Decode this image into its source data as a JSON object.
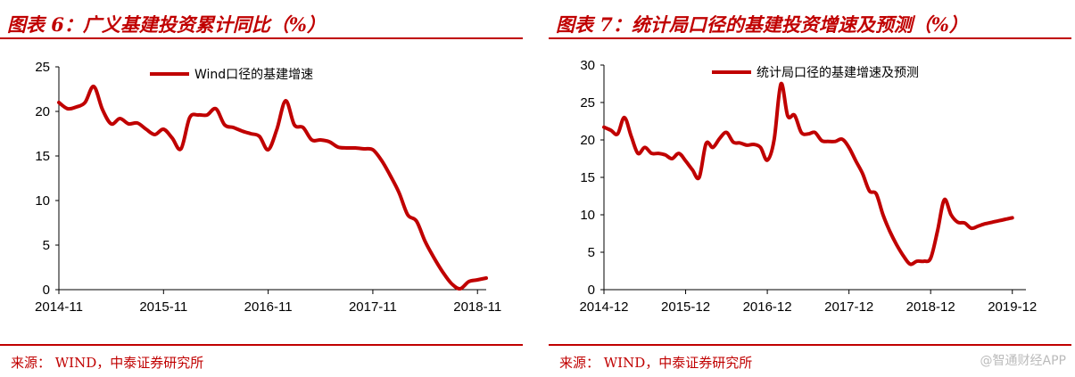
{
  "charts": [
    {
      "title": "图表 6：广义基建投资累计同比（%）",
      "source": "来源：   WIND，中泰证券研究所",
      "chart_data": {
        "type": "line",
        "xlabel": "",
        "ylabel": "",
        "ylim": [
          0,
          25
        ],
        "yticks": [
          0,
          5,
          10,
          15,
          20,
          25
        ],
        "xlim": [
          0,
          49
        ],
        "xtick_labels": [
          {
            "pos": 0,
            "label": "2014-11"
          },
          {
            "pos": 12,
            "label": "2015-11"
          },
          {
            "pos": 24,
            "label": "2016-11"
          },
          {
            "pos": 36,
            "label": "2017-11"
          },
          {
            "pos": 48,
            "label": "2018-11"
          }
        ],
        "grid": false,
        "legend_position": "top",
        "color": "#c00000",
        "series": [
          {
            "name": "Wind口径的基建增速",
            "x": [
              0,
              1,
              2,
              3,
              4,
              5,
              6,
              7,
              8,
              9,
              10,
              11,
              12,
              13,
              14,
              15,
              16,
              17,
              18,
              19,
              20,
              21,
              22,
              23,
              24,
              25,
              26,
              27,
              28,
              29,
              30,
              31,
              32,
              33,
              34,
              35,
              36,
              37,
              38,
              39,
              40,
              41,
              42,
              43,
              44,
              45,
              46,
              47,
              48,
              49
            ],
            "values": [
              21.0,
              20.3,
              20.5,
              21.0,
              22.8,
              20.2,
              18.6,
              19.2,
              18.6,
              18.7,
              18.0,
              17.4,
              18.0,
              17.0,
              15.8,
              19.3,
              19.6,
              19.6,
              20.3,
              18.5,
              18.2,
              17.8,
              17.5,
              17.2,
              15.7,
              18.0,
              21.2,
              18.5,
              18.2,
              16.8,
              16.8,
              16.6,
              16.0,
              15.9,
              15.9,
              15.8,
              15.7,
              14.5,
              12.8,
              10.9,
              8.4,
              7.7,
              5.4,
              3.6,
              2.0,
              0.7,
              0.1,
              0.9,
              1.1,
              1.3
            ]
          }
        ]
      }
    },
    {
      "title": "图表 7：统计局口径的基建投资增速及预测（%）",
      "source": "来源：   WIND，中泰证券研究所",
      "chart_data": {
        "type": "line",
        "xlabel": "",
        "ylabel": "",
        "ylim": [
          0,
          30
        ],
        "yticks": [
          0,
          5,
          10,
          15,
          20,
          25,
          30
        ],
        "xlim": [
          0,
          62
        ],
        "xtick_labels": [
          {
            "pos": 0,
            "label": "2014-12"
          },
          {
            "pos": 12,
            "label": "2015-12"
          },
          {
            "pos": 24,
            "label": "2016-12"
          },
          {
            "pos": 36,
            "label": "2017-12"
          },
          {
            "pos": 48,
            "label": "2018-12"
          },
          {
            "pos": 60,
            "label": "2019-12"
          }
        ],
        "grid": false,
        "legend_position": "top",
        "color": "#c00000",
        "series": [
          {
            "name": "统计局口径的基建增速及预测",
            "x": [
              0,
              1,
              2,
              3,
              4,
              5,
              6,
              7,
              8,
              9,
              10,
              11,
              12,
              13,
              14,
              15,
              16,
              17,
              18,
              19,
              20,
              21,
              22,
              23,
              24,
              25,
              26,
              27,
              28,
              29,
              30,
              31,
              32,
              33,
              34,
              35,
              36,
              37,
              38,
              39,
              40,
              41,
              42,
              43,
              44,
              45,
              46,
              47,
              48,
              49,
              50,
              51,
              52,
              53,
              54,
              55,
              56,
              57,
              58,
              59,
              60
            ],
            "values": [
              21.7,
              21.3,
              20.8,
              23.0,
              20.5,
              18.2,
              19.0,
              18.2,
              18.2,
              18.0,
              17.5,
              18.2,
              17.2,
              16.0,
              15.0,
              19.5,
              19.0,
              20.2,
              21.0,
              19.7,
              19.6,
              19.3,
              19.4,
              19.0,
              17.3,
              20.0,
              27.5,
              23.2,
              23.3,
              21.0,
              20.8,
              21.0,
              19.9,
              19.8,
              19.8,
              20.1,
              19.0,
              17.2,
              15.5,
              13.2,
              12.8,
              10.0,
              7.8,
              6.0,
              4.5,
              3.4,
              3.8,
              3.8,
              4.2,
              7.8,
              12.0,
              10.0,
              9.0,
              8.9,
              8.2,
              8.5,
              8.8,
              9.0,
              9.2,
              9.4,
              9.6
            ]
          }
        ]
      }
    }
  ],
  "watermark": "@智通财经APP"
}
